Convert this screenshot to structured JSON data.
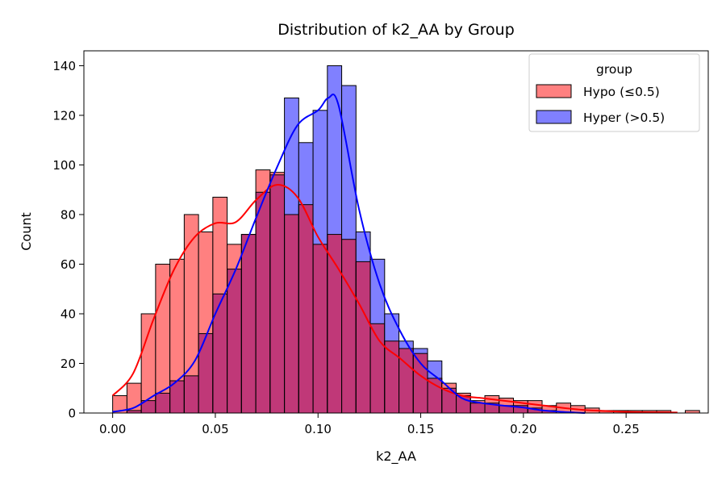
{
  "chart_data": {
    "type": "histogram",
    "title": "Distribution of k2_AA by Group",
    "xlabel": "k2_AA",
    "ylabel": "Count",
    "xlim": [
      -0.014,
      0.29
    ],
    "ylim": [
      0,
      146
    ],
    "xticks": [
      0.0,
      0.05,
      0.1,
      0.15,
      0.2,
      0.25
    ],
    "xtick_labels": [
      "0.00",
      "0.05",
      "0.10",
      "0.15",
      "0.20",
      "0.25"
    ],
    "yticks": [
      0,
      20,
      40,
      60,
      80,
      100,
      120,
      140
    ],
    "ytick_labels": [
      "0",
      "20",
      "40",
      "60",
      "80",
      "100",
      "120",
      "140"
    ],
    "bin_start": 0.0,
    "bin_width": 0.00697,
    "overlap_color": "#c03878",
    "grid": false,
    "legend": {
      "title": "group",
      "placement": "top-right"
    },
    "series": [
      {
        "name": "Hypo (≤0.5)",
        "color": "#ff0000",
        "fill": "#ff8080",
        "counts": [
          7,
          12,
          40,
          60,
          62,
          80,
          73,
          87,
          68,
          72,
          98,
          97,
          80,
          84,
          68,
          72,
          70,
          61,
          36,
          29,
          26,
          24,
          14,
          12,
          8,
          5,
          7,
          6,
          5,
          5,
          3,
          4,
          3,
          2,
          1,
          1,
          1,
          1,
          1,
          0,
          1
        ],
        "kde": [
          [
            0.0,
            7
          ],
          [
            0.01,
            16
          ],
          [
            0.02,
            38
          ],
          [
            0.03,
            58
          ],
          [
            0.04,
            71
          ],
          [
            0.05,
            76.5
          ],
          [
            0.06,
            77
          ],
          [
            0.07,
            86
          ],
          [
            0.08,
            92
          ],
          [
            0.09,
            87
          ],
          [
            0.1,
            71
          ],
          [
            0.11,
            58
          ],
          [
            0.12,
            44
          ],
          [
            0.13,
            29
          ],
          [
            0.14,
            22
          ],
          [
            0.15,
            15
          ],
          [
            0.16,
            10
          ],
          [
            0.17,
            7
          ],
          [
            0.18,
            6
          ],
          [
            0.19,
            5
          ],
          [
            0.2,
            4
          ],
          [
            0.21,
            3
          ],
          [
            0.22,
            2
          ],
          [
            0.23,
            1.2
          ],
          [
            0.24,
            0.8
          ],
          [
            0.25,
            0.5
          ],
          [
            0.26,
            0.3
          ],
          [
            0.275,
            0.2
          ]
        ]
      },
      {
        "name": "Hyper (>0.5)",
        "color": "#0000ff",
        "fill": "#8080ff",
        "counts": [
          0,
          1,
          5,
          8,
          13,
          15,
          32,
          48,
          58,
          72,
          89,
          96,
          127,
          109,
          122,
          140,
          132,
          73,
          62,
          40,
          29,
          26,
          21,
          10,
          7,
          4,
          4,
          3,
          3,
          2,
          1,
          0,
          0,
          0,
          0,
          0,
          0,
          0,
          0,
          0,
          0
        ],
        "kde": [
          [
            0.0,
            0.5
          ],
          [
            0.01,
            2
          ],
          [
            0.02,
            7
          ],
          [
            0.03,
            12
          ],
          [
            0.04,
            21
          ],
          [
            0.05,
            40
          ],
          [
            0.06,
            58
          ],
          [
            0.07,
            79
          ],
          [
            0.08,
            99
          ],
          [
            0.09,
            116
          ],
          [
            0.1,
            122
          ],
          [
            0.105,
            127
          ],
          [
            0.11,
            124
          ],
          [
            0.12,
            82
          ],
          [
            0.13,
            52
          ],
          [
            0.14,
            33
          ],
          [
            0.15,
            20
          ],
          [
            0.16,
            13
          ],
          [
            0.17,
            6
          ],
          [
            0.18,
            4
          ],
          [
            0.19,
            3
          ],
          [
            0.2,
            2.2
          ],
          [
            0.21,
            1
          ],
          [
            0.22,
            0.4
          ],
          [
            0.23,
            0
          ]
        ]
      }
    ]
  }
}
